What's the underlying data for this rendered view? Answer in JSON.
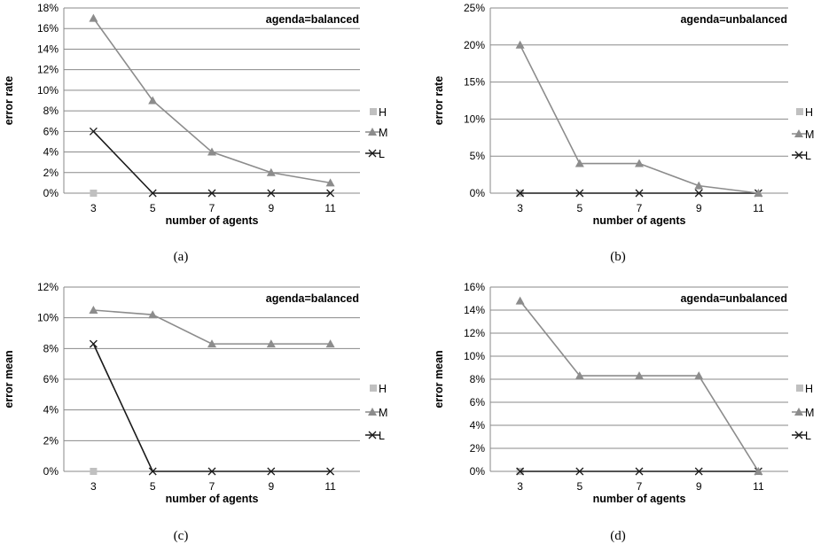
{
  "chart_data": [
    {
      "type": "line",
      "caption": "(a)",
      "annotation": "agenda=balanced",
      "xlabel": "number of agents",
      "ylabel": "error rate",
      "categories": [
        "3",
        "5",
        "7",
        "9",
        "11"
      ],
      "yticks": [
        "0%",
        "2%",
        "4%",
        "6%",
        "8%",
        "10%",
        "12%",
        "14%",
        "16%",
        "18%"
      ],
      "ylim": [
        0,
        18
      ],
      "series": [
        {
          "name": "H",
          "values": [
            0,
            0,
            0,
            0,
            0
          ],
          "color": "#c0c0c0",
          "marker": "square"
        },
        {
          "name": "M",
          "values": [
            17,
            9,
            4,
            2,
            1
          ],
          "color": "#8c8c8c",
          "marker": "triangle"
        },
        {
          "name": "L",
          "values": [
            6,
            0,
            0,
            0,
            0
          ],
          "color": "#1a1a1a",
          "marker": "cross"
        }
      ]
    },
    {
      "type": "line",
      "caption": "(b)",
      "annotation": "agenda=unbalanced",
      "xlabel": "number of agents",
      "ylabel": "error rate",
      "categories": [
        "3",
        "5",
        "7",
        "9",
        "11"
      ],
      "yticks": [
        "0%",
        "5%",
        "10%",
        "15%",
        "20%",
        "25%"
      ],
      "ylim": [
        0,
        25
      ],
      "series": [
        {
          "name": "H",
          "values": [
            0,
            0,
            0,
            0,
            0
          ],
          "color": "#c0c0c0",
          "marker": "square"
        },
        {
          "name": "M",
          "values": [
            20,
            4,
            4,
            1,
            0
          ],
          "color": "#8c8c8c",
          "marker": "triangle"
        },
        {
          "name": "L",
          "values": [
            0,
            0,
            0,
            0,
            0
          ],
          "color": "#1a1a1a",
          "marker": "cross"
        }
      ]
    },
    {
      "type": "line",
      "caption": "(c)",
      "annotation": "agenda=balanced",
      "xlabel": "number of agents",
      "ylabel": "error mean",
      "categories": [
        "3",
        "5",
        "7",
        "9",
        "11"
      ],
      "yticks": [
        "0%",
        "2%",
        "4%",
        "6%",
        "8%",
        "10%",
        "12%"
      ],
      "ylim": [
        0,
        12
      ],
      "series": [
        {
          "name": "H",
          "values": [
            0,
            0,
            0,
            0,
            0
          ],
          "color": "#c0c0c0",
          "marker": "square"
        },
        {
          "name": "M",
          "values": [
            10.5,
            10.2,
            8.3,
            8.3,
            8.3
          ],
          "color": "#8c8c8c",
          "marker": "triangle"
        },
        {
          "name": "L",
          "values": [
            8.3,
            0,
            0,
            0,
            0
          ],
          "color": "#1a1a1a",
          "marker": "cross"
        }
      ]
    },
    {
      "type": "line",
      "caption": "(d)",
      "annotation": "agenda=unbalanced",
      "xlabel": "number of agents",
      "ylabel": "error mean",
      "categories": [
        "3",
        "5",
        "7",
        "9",
        "11"
      ],
      "yticks": [
        "0%",
        "2%",
        "4%",
        "6%",
        "8%",
        "10%",
        "12%",
        "14%",
        "16%"
      ],
      "ylim": [
        0,
        16
      ],
      "series": [
        {
          "name": "H",
          "values": [
            0,
            0,
            0,
            0,
            0
          ],
          "color": "#c0c0c0",
          "marker": "square"
        },
        {
          "name": "M",
          "values": [
            14.8,
            8.3,
            8.3,
            8.3,
            0
          ],
          "color": "#8c8c8c",
          "marker": "triangle"
        },
        {
          "name": "L",
          "values": [
            0,
            0,
            0,
            0,
            0
          ],
          "color": "#1a1a1a",
          "marker": "cross"
        }
      ]
    }
  ]
}
